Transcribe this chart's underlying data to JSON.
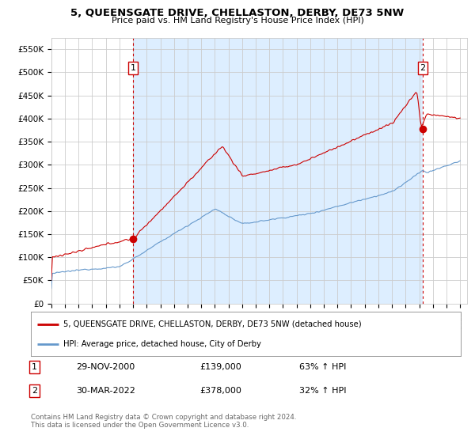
{
  "title": "5, QUEENSGATE DRIVE, CHELLASTON, DERBY, DE73 5NW",
  "subtitle": "Price paid vs. HM Land Registry's House Price Index (HPI)",
  "background_color": "#ffffff",
  "plot_bg_color": "#ffffff",
  "plot_bg_shaded": "#ddeeff",
  "grid_color": "#cccccc",
  "ylim": [
    0,
    575000
  ],
  "xlim_start": 1995.0,
  "xlim_end": 2025.5,
  "yticks": [
    0,
    50000,
    100000,
    150000,
    200000,
    250000,
    300000,
    350000,
    400000,
    450000,
    500000,
    550000
  ],
  "ytick_labels": [
    "£0",
    "£50K",
    "£100K",
    "£150K",
    "£200K",
    "£250K",
    "£300K",
    "£350K",
    "£400K",
    "£450K",
    "£500K",
    "£550K"
  ],
  "xtick_years": [
    1995,
    1996,
    1997,
    1998,
    1999,
    2000,
    2001,
    2002,
    2003,
    2004,
    2005,
    2006,
    2007,
    2008,
    2009,
    2010,
    2011,
    2012,
    2013,
    2014,
    2015,
    2016,
    2017,
    2018,
    2019,
    2020,
    2021,
    2022,
    2023,
    2024,
    2025
  ],
  "hpi_color": "#6699cc",
  "price_paid_color": "#cc0000",
  "vline_color": "#cc0000",
  "vline_style": "--",
  "marker1_x": 2001.0,
  "marker1_y": 139000,
  "marker2_x": 2022.25,
  "marker2_y": 378000,
  "transaction1_date": "29-NOV-2000",
  "transaction1_price": "£139,000",
  "transaction1_hpi": "63% ↑ HPI",
  "transaction2_date": "30-MAR-2022",
  "transaction2_price": "£378,000",
  "transaction2_hpi": "32% ↑ HPI",
  "legend_property": "5, QUEENSGATE DRIVE, CHELLASTON, DERBY, DE73 5NW (detached house)",
  "legend_hpi": "HPI: Average price, detached house, City of Derby",
  "footer": "Contains HM Land Registry data © Crown copyright and database right 2024.\nThis data is licensed under the Open Government Licence v3.0.",
  "hpi_base_value": 65000,
  "pp_base_value": 100000
}
